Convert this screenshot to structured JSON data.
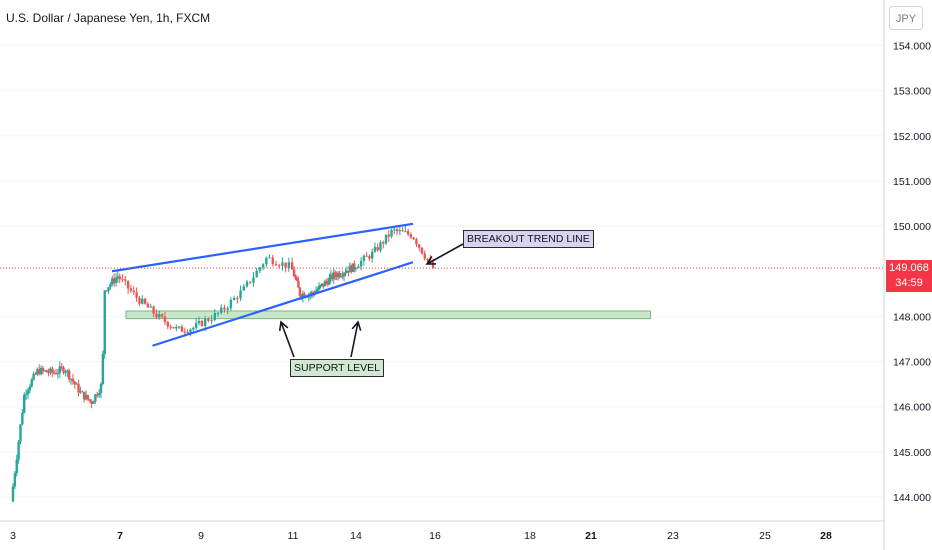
{
  "header": {
    "title": "U.S. Dollar / Japanese Yen, 1h, FXCM",
    "currency": "JPY"
  },
  "price_tag": {
    "price": "149.068",
    "countdown": "34:59"
  },
  "annotations": {
    "breakout": "BREAKOUT TREND LINE",
    "support": "SUPPORT LEVEL"
  },
  "colors": {
    "up": "#26a69a",
    "down": "#ef5350",
    "trendline": "#2962ff",
    "support_fill": "#c8e6c9",
    "price_line": "#f23645"
  },
  "chart_data": {
    "type": "candlestick",
    "symbol": "U.S. Dollar / Japanese Yen",
    "timeframe": "1h",
    "ylim": [
      143.6,
      154.6
    ],
    "y_ticks": [
      "154.000",
      "153.000",
      "152.000",
      "151.000",
      "150.000",
      "148.000",
      "147.000",
      "146.000",
      "145.000",
      "144.000"
    ],
    "x_ticks": [
      "3",
      "7",
      "9",
      "11",
      "14",
      "16",
      "18",
      "21",
      "23",
      "25",
      "28"
    ],
    "x_ticks_bold": [
      "7",
      "21",
      "28"
    ],
    "current_price": 149.068,
    "trendlines": [
      {
        "from": {
          "x": "7",
          "y": 149.0
        },
        "to": {
          "x": "16",
          "y": 150.05
        }
      },
      {
        "from": {
          "x": "8",
          "y": 147.35
        },
        "to": {
          "x": "16",
          "y": 149.2
        }
      }
    ],
    "support_zone": {
      "from_x": "7",
      "to_x": "22.5",
      "y_low": 147.95,
      "y_high": 148.12
    },
    "close_path": [
      {
        "x": "3",
        "y": 143.9
      },
      {
        "x": "3.5",
        "y": 146.3
      },
      {
        "x": "4",
        "y": 146.8
      },
      {
        "x": "4.6",
        "y": 146.75
      },
      {
        "x": "5",
        "y": 146.85
      },
      {
        "x": "5.6",
        "y": 146.3
      },
      {
        "x": "6",
        "y": 146.1
      },
      {
        "x": "6.4",
        "y": 146.5
      },
      {
        "x": "6.5",
        "y": 148.6
      },
      {
        "x": "7",
        "y": 148.9
      },
      {
        "x": "7.5",
        "y": 148.4
      },
      {
        "x": "8",
        "y": 148.0
      },
      {
        "x": "8.5",
        "y": 147.7
      },
      {
        "x": "8.9",
        "y": 147.75
      },
      {
        "x": "9.5",
        "y": 148.1
      },
      {
        "x": "10",
        "y": 148.6
      },
      {
        "x": "10.5",
        "y": 149.3
      },
      {
        "x": "11",
        "y": 149.1
      },
      {
        "x": "11.4",
        "y": 148.5
      },
      {
        "x": "12",
        "y": 148.5
      },
      {
        "x": "13",
        "y": 148.9
      },
      {
        "x": "14",
        "y": 149.1
      },
      {
        "x": "14.5",
        "y": 149.4
      },
      {
        "x": "15",
        "y": 149.9
      },
      {
        "x": "15.5",
        "y": 149.8
      },
      {
        "x": "16",
        "y": 149.07
      }
    ]
  }
}
